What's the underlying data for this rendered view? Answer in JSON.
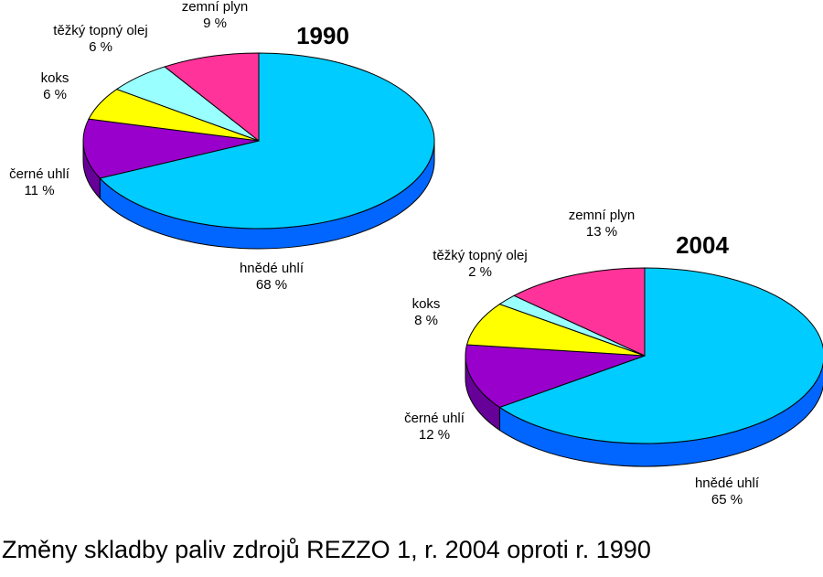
{
  "caption": "Změny skladby paliv zdrojů REZZO 1, r. 2004 oproti r. 1990",
  "colors": {
    "hnede_uhli": "#00ccff",
    "cerne_uhli": "#9900cc",
    "koks": "#ffff00",
    "tezky_topny_olej": "#99ffff",
    "zemni_plyn": "#ff3399"
  },
  "chart_data": [
    {
      "type": "pie",
      "title": "1990",
      "labels": [
        "hnědé uhlí",
        "černé uhlí",
        "koks",
        "těžký topný olej",
        "zemní plyn"
      ],
      "values": [
        68,
        11,
        6,
        6,
        9
      ],
      "value_labels": [
        "68 %",
        "11 %",
        "6 %",
        "6 %",
        "9 %"
      ],
      "style": "3d"
    },
    {
      "type": "pie",
      "title": "2004",
      "labels": [
        "hnědé uhlí",
        "černé uhlí",
        "koks",
        "těžký topný olej",
        "zemní plyn"
      ],
      "values": [
        65,
        12,
        8,
        2,
        13
      ],
      "value_labels": [
        "65 %",
        "12 %",
        "8 %",
        "2 %",
        "13 %"
      ],
      "style": "3d"
    }
  ]
}
